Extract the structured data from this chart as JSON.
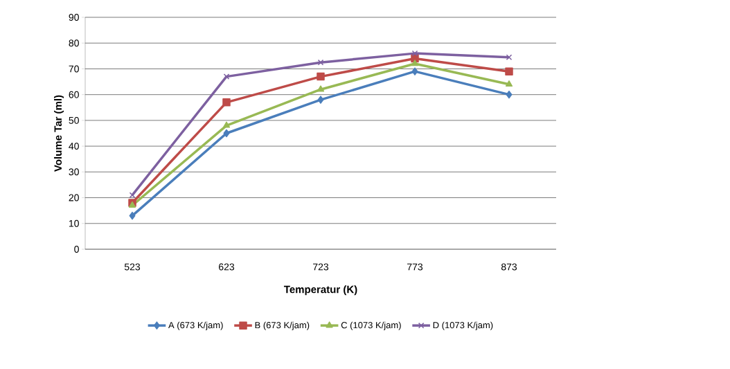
{
  "chart_data": {
    "type": "line",
    "xlabel": "Temperatur (K)",
    "ylabel": "Volume Tar (ml)",
    "categories": [
      "523",
      "623",
      "723",
      "773",
      "873"
    ],
    "series": [
      {
        "name": "A (673 K/jam)",
        "color": "#4a7ebb",
        "marker": "diamond",
        "values": [
          13,
          45,
          58,
          69,
          60
        ]
      },
      {
        "name": "B (673 K/jam)",
        "color": "#be4b48",
        "marker": "square",
        "values": [
          18,
          57,
          67,
          74,
          69
        ]
      },
      {
        "name": "C (1073 K/jam)",
        "color": "#98b954",
        "marker": "triangle",
        "values": [
          17,
          48,
          62,
          72,
          64
        ]
      },
      {
        "name": "D (1073 K/jam)",
        "color": "#7d60a0",
        "marker": "cross",
        "values": [
          21,
          67,
          72.5,
          76,
          74.5
        ]
      }
    ],
    "ylim": [
      0,
      90
    ],
    "yticks": [
      0,
      10,
      20,
      30,
      40,
      50,
      60,
      70,
      80,
      90
    ],
    "grid": "y",
    "legend": "bottom"
  }
}
